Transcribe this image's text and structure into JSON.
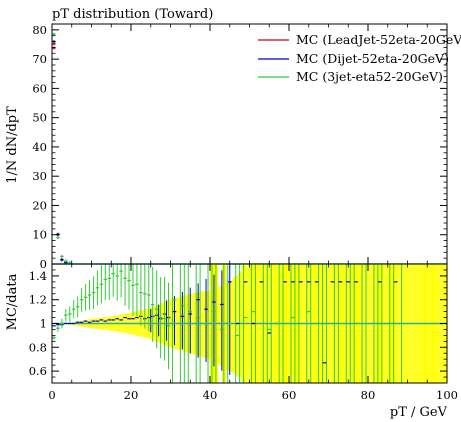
{
  "chart_data": [
    {
      "type": "scatter",
      "title": "pT distribution (Toward)",
      "xlabel": "pT / GeV",
      "ylabel": "1/N dN/dpT",
      "xlim": [
        0,
        100
      ],
      "ylim": [
        0,
        82
      ],
      "yticks": [
        0,
        10,
        20,
        30,
        40,
        50,
        60,
        70,
        80
      ],
      "legend_position": "top-right",
      "series": [
        {
          "name": "MC (LeadJet-52eta-20GeV)",
          "color": "#cc0000",
          "points": [
            [
              0.5,
              75.2
            ],
            [
              0.5,
              73.8
            ],
            [
              1.5,
              10.2
            ],
            [
              2.5,
              1.5
            ],
            [
              3.5,
              0.6
            ]
          ]
        },
        {
          "name": "MC (Dijet-52eta-20GeV)",
          "color": "#0000cc",
          "points": [
            [
              0.5,
              76.0
            ],
            [
              1.5,
              10.0
            ],
            [
              2.5,
              1.4
            ],
            [
              3.5,
              0.5
            ]
          ]
        },
        {
          "name": "MC (3jet-eta52-20GeV)",
          "color": "#33cc33",
          "points": [
            [
              0.5,
              78.5
            ],
            [
              1.5,
              9.0
            ],
            [
              2.5,
              2.6
            ],
            [
              3.5,
              1.0
            ],
            [
              4.5,
              0.4
            ]
          ]
        }
      ]
    },
    {
      "type": "scatter",
      "ylabel": "MC/data",
      "xlabel": "pT / GeV",
      "xlim": [
        0,
        100
      ],
      "ylim": [
        0.5,
        1.5
      ],
      "xticks": [
        0,
        20,
        40,
        60,
        80,
        100
      ],
      "yticks": [
        0.6,
        0.8,
        1,
        1.2,
        1.4
      ],
      "uncertainty_band": [
        [
          0,
          1.0,
          1.0
        ],
        [
          5,
          0.99,
          1.01
        ],
        [
          10,
          0.96,
          1.04
        ],
        [
          15,
          0.94,
          1.06
        ],
        [
          20,
          0.91,
          1.09
        ],
        [
          25,
          0.87,
          1.13
        ],
        [
          30,
          0.8,
          1.2
        ],
        [
          35,
          0.75,
          1.25
        ],
        [
          40,
          0.7,
          1.28
        ],
        [
          45,
          0.6,
          1.35
        ],
        [
          50,
          0.5,
          1.5
        ],
        [
          100,
          0.5,
          1.5
        ]
      ],
      "yellow_bins": [
        [
          40,
          42
        ],
        [
          43,
          44
        ],
        [
          48,
          49
        ],
        [
          50,
          52
        ],
        [
          53,
          54
        ],
        [
          56,
          57
        ],
        [
          58,
          60
        ],
        [
          61,
          63
        ],
        [
          66,
          67
        ],
        [
          68,
          69
        ],
        [
          71,
          72
        ],
        [
          73,
          74
        ],
        [
          76,
          78
        ],
        [
          82,
          84
        ],
        [
          85,
          87
        ],
        [
          94,
          95
        ],
        [
          96,
          97
        ]
      ],
      "series": [
        {
          "name": "MC (Dijet-52eta-20GeV)",
          "color": "#0000cc",
          "points": [
            [
              0.5,
              0.98
            ],
            [
              1.5,
              0.99
            ],
            [
              2.5,
              0.99
            ],
            [
              3.5,
              1.0
            ],
            [
              4.5,
              1.0
            ],
            [
              5.5,
              1.0
            ],
            [
              6.5,
              1.01
            ],
            [
              7.5,
              1.01
            ],
            [
              8.5,
              1.02
            ],
            [
              9.5,
              1.01
            ],
            [
              10.5,
              1.02
            ],
            [
              11.5,
              1.02
            ],
            [
              12.5,
              1.03
            ],
            [
              13.5,
              1.02
            ],
            [
              14.5,
              1.03
            ],
            [
              15.5,
              1.03
            ],
            [
              16.5,
              1.04
            ],
            [
              17.5,
              1.03
            ],
            [
              18.5,
              1.05
            ],
            [
              19.5,
              1.04
            ],
            [
              20.5,
              1.04
            ],
            [
              21.5,
              1.05
            ],
            [
              22.5,
              1.06
            ],
            [
              23.5,
              1.04
            ],
            [
              24.5,
              1.05
            ],
            [
              25.5,
              1.06
            ],
            [
              26.5,
              1.07
            ],
            [
              27.5,
              1.04
            ],
            [
              28.5,
              1.08
            ],
            [
              29.5,
              1.05
            ],
            [
              31,
              1.1
            ],
            [
              33,
              1.06
            ],
            [
              35,
              1.08
            ],
            [
              37,
              1.2
            ],
            [
              39,
              1.12
            ],
            [
              41,
              1.18
            ],
            [
              43,
              1.16
            ],
            [
              45,
              1.35
            ],
            [
              47,
              1.0
            ],
            [
              49,
              1.35
            ],
            [
              51,
              1.0
            ],
            [
              53,
              1.35
            ],
            [
              55,
              0.92
            ],
            [
              57,
              1.0
            ],
            [
              59,
              1.35
            ],
            [
              61,
              1.35
            ],
            [
              63,
              1.35
            ],
            [
              65,
              1.35
            ],
            [
              67,
              1.35
            ],
            [
              69,
              0.67
            ],
            [
              71,
              1.35
            ],
            [
              73,
              1.35
            ],
            [
              75,
              1.35
            ],
            [
              77,
              1.35
            ],
            [
              83,
              1.35
            ],
            [
              87,
              1.35
            ]
          ]
        },
        {
          "name": "MC (3jet-eta52-20GeV)",
          "color": "#33cc33",
          "points": [
            [
              0.5,
              0.88
            ],
            [
              1.5,
              0.96
            ],
            [
              2.5,
              1.0
            ],
            [
              3.5,
              1.07
            ],
            [
              4.5,
              1.08
            ],
            [
              5.5,
              1.12
            ],
            [
              6.5,
              1.14
            ],
            [
              7.5,
              1.2
            ],
            [
              8.5,
              1.22
            ],
            [
              9.5,
              1.24
            ],
            [
              10.5,
              1.26
            ],
            [
              11.5,
              1.3
            ],
            [
              12.5,
              1.33
            ],
            [
              13.5,
              1.37
            ],
            [
              14.5,
              1.38
            ],
            [
              15.5,
              1.42
            ],
            [
              16.5,
              1.4
            ],
            [
              17.5,
              1.44
            ],
            [
              18.5,
              1.38
            ],
            [
              19.5,
              1.36
            ],
            [
              20.5,
              1.32
            ],
            [
              21.5,
              1.33
            ],
            [
              22.5,
              1.26
            ],
            [
              23.5,
              1.25
            ],
            [
              24.5,
              1.24
            ],
            [
              25.5,
              1.16
            ],
            [
              26.5,
              1.12
            ],
            [
              27.5,
              1.05
            ],
            [
              28.5,
              1.04
            ],
            [
              29.5,
              0.98
            ],
            [
              31,
              1.2
            ],
            [
              33,
              1.15
            ],
            [
              35,
              1.1
            ],
            [
              37,
              1.05
            ],
            [
              39,
              1.0
            ],
            [
              41,
              1.1
            ],
            [
              43,
              0.95
            ],
            [
              45,
              1.0
            ],
            [
              47,
              0.9
            ],
            [
              49,
              1.05
            ],
            [
              51,
              1.1
            ],
            [
              55,
              0.95
            ],
            [
              57,
              1.0
            ],
            [
              61,
              1.05
            ],
            [
              65,
              1.1
            ]
          ]
        }
      ]
    }
  ]
}
